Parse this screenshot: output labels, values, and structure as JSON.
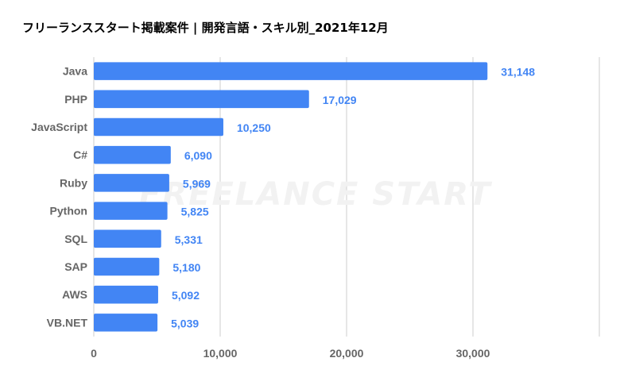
{
  "chart_data": {
    "type": "bar",
    "orientation": "horizontal",
    "title": "フリーランススタート掲載案件 | 開発言語・スキル別_2021年12月",
    "categories": [
      "Java",
      "PHP",
      "JavaScript",
      "C#",
      "Ruby",
      "Python",
      "SQL",
      "SAP",
      "AWS",
      "VB.NET"
    ],
    "values": [
      31148,
      17029,
      10250,
      6090,
      5969,
      5825,
      5331,
      5180,
      5092,
      5039
    ],
    "value_labels": [
      "31,148",
      "17,029",
      "10,250",
      "6,090",
      "5,969",
      "5,825",
      "5,331",
      "5,180",
      "5,092",
      "5,039"
    ],
    "xlim": [
      0,
      40000
    ],
    "x_ticks": [
      0,
      10000,
      20000,
      30000,
      40000
    ],
    "x_tick_labels": [
      "0",
      "10,000",
      "20,000",
      "30,000",
      ""
    ],
    "grid": true,
    "legend": "none",
    "watermark": "FREELANCE START",
    "colors": {
      "bar": "#4285f4",
      "value_label": "#4285f4",
      "grid": "#cccccc",
      "axis_text": "#666666",
      "watermark": "#f2f2f2"
    }
  }
}
